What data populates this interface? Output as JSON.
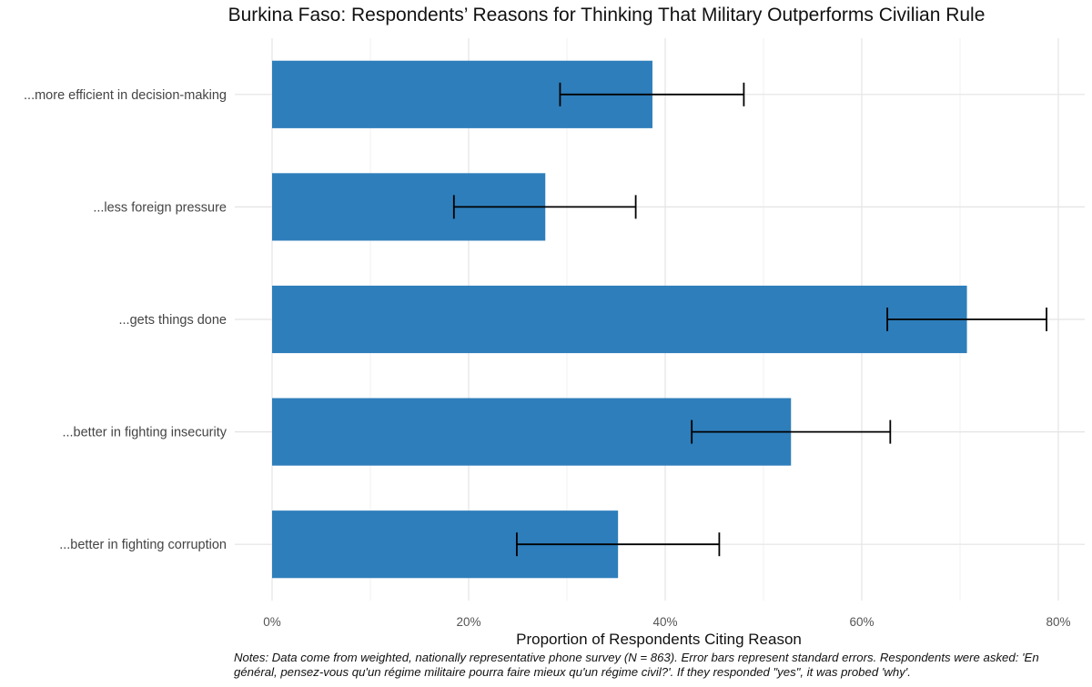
{
  "chart_data": {
    "type": "bar",
    "orientation": "horizontal",
    "title": "Burkina Faso: Respondents’ Reasons for Thinking That Military Outperforms Civilian Rule",
    "xlabel": "Proportion of Respondents Citing Reason",
    "ylabel": "",
    "xlim": [
      0,
      0.82
    ],
    "x_ticks": [
      0,
      0.2,
      0.4,
      0.6,
      0.8
    ],
    "x_tick_labels": [
      "0%",
      "20%",
      "40%",
      "60%",
      "80%"
    ],
    "grid": true,
    "bar_color": "#2E7EBB",
    "error_bar_color": "#000000",
    "categories": [
      "...more efficient in decision-making",
      "...less foreign pressure",
      "...gets things done",
      "...better in fighting insecurity",
      "...better in fighting corruption"
    ],
    "values": [
      0.387,
      0.278,
      0.707,
      0.528,
      0.352
    ],
    "error_low": [
      0.293,
      0.185,
      0.626,
      0.427,
      0.249
    ],
    "error_high": [
      0.48,
      0.37,
      0.788,
      0.629,
      0.455
    ],
    "note": "Notes: Data come from weighted, nationally representative phone survey (N = 863). Error bars represent standard errors. Respondents were asked: 'En général, pensez-vous qu'un régime militaire pourra faire mieux qu'un régime civil?'. If they responded \"yes\", it was probed 'why'."
  }
}
